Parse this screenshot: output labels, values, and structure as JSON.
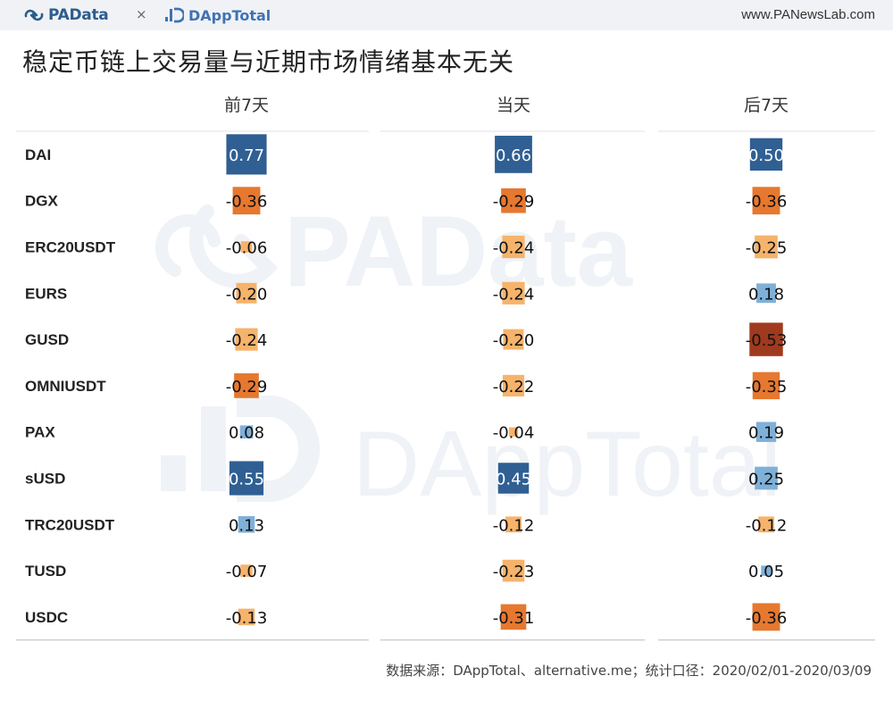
{
  "header": {
    "brand_left": "PAData",
    "separator": "×",
    "brand_right": "DAppTotal",
    "site_url": "www.PANewsLab.com"
  },
  "title": "稳定币链上交易量与近期市场情绪基本无关",
  "source": "数据来源：DAppTotal、alternative.me；统计口径：2020/02/01-2020/03/09",
  "watermark": {
    "line1": "PAData",
    "line2": "DAppTotal"
  },
  "colors": {
    "positive_strong": "#2f5f93",
    "positive_light": "#7fb0d8",
    "negative_light": "#f6b36b",
    "negative_mid": "#e6782f",
    "negative_strong": "#a03a1e"
  },
  "chart_data": {
    "type": "heatmap",
    "title": "稳定币链上交易量与近期市场情绪基本无关",
    "columns": [
      "前7天",
      "当天",
      "后7天"
    ],
    "rows": [
      "DAI",
      "DGX",
      "ERC20USDT",
      "EURS",
      "GUSD",
      "OMNIUSDT",
      "PAX",
      "sUSD",
      "TRC20USDT",
      "TUSD",
      "USDC"
    ],
    "values": [
      [
        0.77,
        0.66,
        0.5
      ],
      [
        -0.36,
        -0.29,
        -0.36
      ],
      [
        -0.06,
        -0.24,
        -0.25
      ],
      [
        -0.2,
        -0.24,
        0.18
      ],
      [
        -0.24,
        -0.2,
        -0.53
      ],
      [
        -0.29,
        -0.22,
        -0.35
      ],
      [
        0.08,
        -0.04,
        0.19
      ],
      [
        0.55,
        0.45,
        0.25
      ],
      [
        0.13,
        -0.12,
        -0.12
      ],
      [
        -0.07,
        -0.23,
        0.05
      ],
      [
        -0.13,
        -0.31,
        -0.36
      ]
    ],
    "labels": [
      [
        "0.77",
        "0.66",
        "0.50"
      ],
      [
        "-0.36",
        "-0.29",
        "-0.36"
      ],
      [
        "-0.06",
        "-0.24",
        "-0.25"
      ],
      [
        "-0.20",
        "-0.24",
        "0.18"
      ],
      [
        "-0.24",
        "-0.20",
        "-0.53"
      ],
      [
        "-0.29",
        "-0.22",
        "-0.35"
      ],
      [
        "0.08",
        "-0.04",
        "0.19"
      ],
      [
        "0.55",
        "0.45",
        "0.25"
      ],
      [
        "0.13",
        "-0.12",
        "-0.12"
      ],
      [
        "-0.07",
        "-0.23",
        "0.05"
      ],
      [
        "-0.13",
        "-0.31",
        "-0.36"
      ]
    ],
    "grid": false,
    "legend": "none"
  }
}
